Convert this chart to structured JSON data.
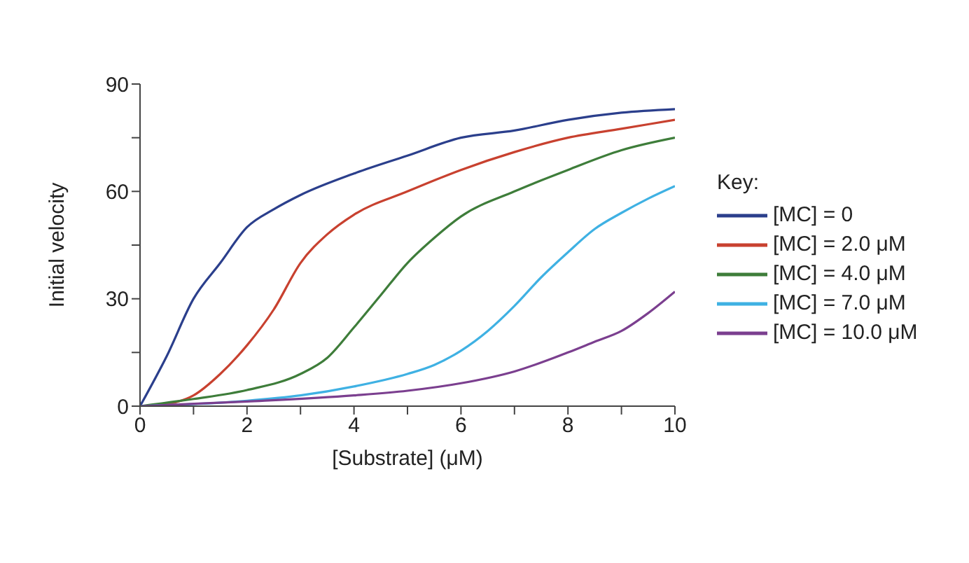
{
  "chart_data": {
    "type": "line",
    "xlabel": "[Substrate] (μM)",
    "ylabel": "Initial velocity",
    "legend_title": "Key:",
    "legend": "right",
    "grid": false,
    "marker": "none",
    "line_style": "solid",
    "xlim": [
      0,
      10
    ],
    "ylim": [
      0,
      90
    ],
    "xticks": [
      0,
      {
        "value": 1,
        "label": null
      },
      2,
      {
        "value": 3,
        "label": null
      },
      4,
      {
        "value": 5,
        "label": null
      },
      6,
      {
        "value": 7,
        "label": null
      },
      8,
      {
        "value": 9,
        "label": null
      },
      10
    ],
    "yticks": [
      0,
      {
        "value": 15,
        "label": null
      },
      30,
      {
        "value": 45,
        "label": null
      },
      60,
      {
        "value": 75,
        "label": null
      },
      90
    ],
    "series": [
      {
        "name": "[MC] = 0",
        "color": "#2b3f8c",
        "x": [
          0,
          0.5,
          1,
          1.5,
          2,
          2.5,
          3,
          4,
          5,
          6,
          7,
          8,
          9,
          10
        ],
        "values": [
          0,
          14,
          30,
          40,
          50,
          55,
          59,
          65,
          70,
          75,
          77,
          80,
          82,
          83
        ]
      },
      {
        "name": "[MC] = 2.0 μM",
        "color": "#c8412f",
        "x": [
          0,
          0.5,
          1,
          1.5,
          2,
          2.5,
          3,
          3.5,
          4,
          5,
          6,
          7,
          8,
          9,
          10
        ],
        "values": [
          0,
          0.6,
          3,
          9,
          17,
          27,
          40,
          48,
          53.5,
          60,
          66,
          71,
          75,
          77.5,
          80
        ]
      },
      {
        "name": "[MC] = 4.0 μM",
        "color": "#3e7d3a",
        "x": [
          0,
          1,
          2,
          3,
          3.5,
          4,
          4.5,
          5,
          5.5,
          6,
          7,
          8,
          9,
          10
        ],
        "values": [
          0,
          2,
          4.5,
          9,
          13.5,
          22,
          31,
          40,
          47,
          53,
          60,
          66,
          71.5,
          75
        ]
      },
      {
        "name": "[MC] = 7.0 μM",
        "color": "#3fb1e3",
        "x": [
          0,
          2,
          3,
          4,
          5,
          5.5,
          6,
          6.5,
          7,
          7.5,
          8,
          8.5,
          9,
          9.5,
          10
        ],
        "values": [
          0,
          1.5,
          3,
          5.5,
          9,
          11.5,
          15.5,
          21,
          28,
          36,
          43,
          49.5,
          54,
          58,
          61.5
        ]
      },
      {
        "name": "[MC] = 10.0 μM",
        "color": "#7b3f8f",
        "x": [
          0,
          2,
          4,
          5,
          6,
          7,
          8,
          8.5,
          9,
          9.5,
          10
        ],
        "values": [
          0,
          1.3,
          3,
          4.3,
          6.4,
          9.7,
          15,
          18,
          21,
          26,
          32
        ]
      }
    ]
  }
}
